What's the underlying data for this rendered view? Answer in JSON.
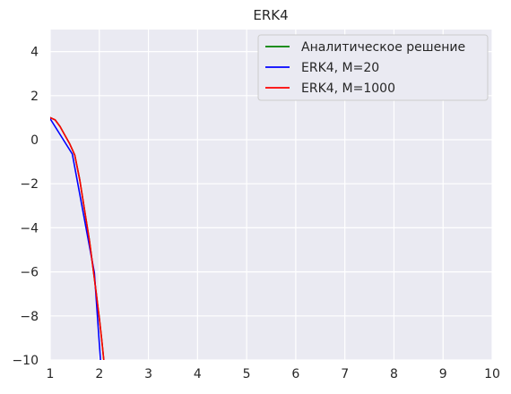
{
  "chart_data": {
    "type": "line",
    "title": "ERK4",
    "xlabel": "",
    "ylabel": "",
    "xlim": [
      1,
      10
    ],
    "ylim": [
      -10,
      5
    ],
    "xticks": [
      1,
      2,
      3,
      4,
      5,
      6,
      7,
      8,
      9,
      10
    ],
    "yticks": [
      4,
      2,
      0,
      -2,
      -4,
      -6,
      -8,
      -10
    ],
    "xtick_labels": [
      "1",
      "2",
      "3",
      "4",
      "5",
      "6",
      "7",
      "8",
      "9",
      "10"
    ],
    "ytick_labels": [
      "4",
      "2",
      "0",
      "−2",
      "−4",
      "−6",
      "−8",
      "−10"
    ],
    "grid": true,
    "legend_position": "top-right",
    "background_color": "#eaeaf2",
    "grid_color": "#ffffff",
    "series": [
      {
        "name": "Аналитическое решение",
        "color": "#008000",
        "x": [
          1.0,
          1.1,
          1.2,
          1.3,
          1.4,
          1.5,
          1.6,
          1.7,
          1.8,
          1.9,
          2.0,
          2.05,
          2.1
        ],
        "y": [
          1.0,
          0.9,
          0.6,
          0.2,
          -0.2,
          -0.7,
          -1.8,
          -3.2,
          -4.6,
          -6.3,
          -8.1,
          -9.1,
          -10.2
        ]
      },
      {
        "name": "ERK4, M=20",
        "color": "#0000ff",
        "x": [
          1.0,
          1.45,
          1.9,
          2.03
        ],
        "y": [
          0.95,
          -0.65,
          -6.05,
          -10.2
        ]
      },
      {
        "name": "ERK4, M=1000",
        "color": "#ff0000",
        "x": [
          1.0,
          1.1,
          1.2,
          1.3,
          1.4,
          1.5,
          1.6,
          1.7,
          1.8,
          1.9,
          2.0,
          2.05,
          2.1
        ],
        "y": [
          1.0,
          0.9,
          0.6,
          0.2,
          -0.2,
          -0.7,
          -1.8,
          -3.2,
          -4.6,
          -6.3,
          -8.1,
          -9.1,
          -10.2
        ]
      }
    ]
  }
}
